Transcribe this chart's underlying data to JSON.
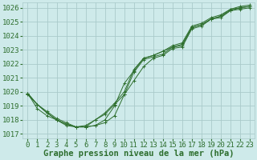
{
  "bg_color": "#ceeaea",
  "grid_color": "#aacaca",
  "line_color": "#2d6e2d",
  "marker_color": "#2d6e2d",
  "text_color": "#2d6e2d",
  "xlabel": "Graphe pression niveau de la mer (hPa)",
  "xlim": [
    -0.5,
    23.5
  ],
  "ylim": [
    1016.7,
    1026.4
  ],
  "yticks": [
    1017,
    1018,
    1019,
    1020,
    1021,
    1022,
    1023,
    1024,
    1025,
    1026
  ],
  "xticks": [
    0,
    1,
    2,
    3,
    4,
    5,
    6,
    7,
    8,
    9,
    10,
    11,
    12,
    13,
    14,
    15,
    16,
    17,
    18,
    19,
    20,
    21,
    22,
    23
  ],
  "series": [
    {
      "x": [
        0,
        1,
        2,
        3,
        4,
        5,
        6,
        7,
        8,
        9,
        10,
        11,
        12,
        13,
        14,
        15,
        16,
        17,
        18,
        19,
        20,
        21,
        22,
        23
      ],
      "y": [
        1019.9,
        1019.1,
        1018.5,
        1018.0,
        1017.7,
        1017.5,
        1017.6,
        1018.0,
        1018.5,
        1019.2,
        1020.0,
        1021.6,
        1022.4,
        1022.6,
        1022.9,
        1023.3,
        1023.5,
        1024.7,
        1024.9,
        1025.3,
        1025.5,
        1025.9,
        1026.1,
        1026.2
      ]
    },
    {
      "x": [
        0,
        1,
        2,
        3,
        4,
        5,
        6,
        7,
        8,
        9,
        10,
        11,
        12,
        13,
        14,
        15,
        16,
        17,
        18,
        19,
        20,
        21,
        22,
        23
      ],
      "y": [
        1019.8,
        1019.1,
        1018.5,
        1018.0,
        1017.7,
        1017.5,
        1017.5,
        1018.0,
        1018.4,
        1019.1,
        1019.8,
        1021.4,
        1022.3,
        1022.5,
        1022.7,
        1023.2,
        1023.3,
        1024.6,
        1024.8,
        1025.2,
        1025.4,
        1025.9,
        1026.0,
        1026.1
      ]
    },
    {
      "x": [
        0,
        1,
        2,
        3,
        4,
        5,
        6,
        7,
        8,
        9,
        10,
        11,
        12,
        13,
        14,
        15,
        16,
        17,
        18,
        19,
        20,
        21,
        22,
        23
      ],
      "y": [
        1019.9,
        1019.1,
        1018.6,
        1018.1,
        1017.8,
        1017.5,
        1017.5,
        1017.6,
        1017.8,
        1018.3,
        1019.8,
        1020.8,
        1021.8,
        1022.4,
        1022.6,
        1023.1,
        1023.2,
        1024.5,
        1024.7,
        1025.2,
        1025.3,
        1025.8,
        1025.9,
        1026.0
      ]
    },
    {
      "x": [
        0,
        1,
        2,
        3,
        4,
        5,
        6,
        7,
        8,
        9,
        10,
        11,
        12,
        13,
        14,
        15,
        16,
        17,
        18,
        19,
        20,
        21,
        22,
        23
      ],
      "y": [
        1019.9,
        1018.8,
        1018.3,
        1018.0,
        1017.6,
        1017.5,
        1017.5,
        1017.6,
        1018.0,
        1019.0,
        1020.6,
        1021.5,
        1022.4,
        1022.6,
        1022.9,
        1023.2,
        1023.4,
        1024.6,
        1024.8,
        1025.2,
        1025.4,
        1025.8,
        1026.0,
        1026.1
      ]
    }
  ],
  "xlabel_fontsize": 7.5,
  "tick_fontsize": 6.5
}
